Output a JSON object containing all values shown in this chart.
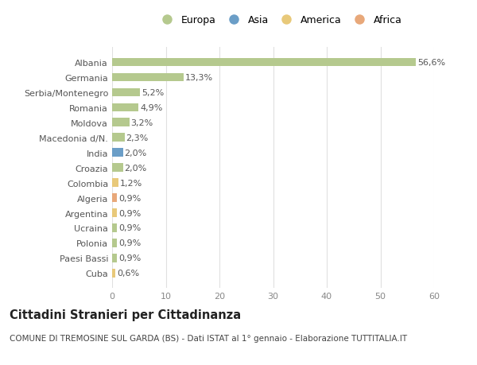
{
  "categories": [
    "Albania",
    "Germania",
    "Serbia/Montenegro",
    "Romania",
    "Moldova",
    "Macedonia d/N.",
    "India",
    "Croazia",
    "Colombia",
    "Algeria",
    "Argentina",
    "Ucraina",
    "Polonia",
    "Paesi Bassi",
    "Cuba"
  ],
  "values": [
    56.6,
    13.3,
    5.2,
    4.9,
    3.2,
    2.3,
    2.0,
    2.0,
    1.2,
    0.9,
    0.9,
    0.9,
    0.9,
    0.9,
    0.6
  ],
  "labels": [
    "56,6%",
    "13,3%",
    "5,2%",
    "4,9%",
    "3,2%",
    "2,3%",
    "2,0%",
    "2,0%",
    "1,2%",
    "0,9%",
    "0,9%",
    "0,9%",
    "0,9%",
    "0,9%",
    "0,6%"
  ],
  "bar_colors": [
    "#b5c98e",
    "#b5c98e",
    "#b5c98e",
    "#b5c98e",
    "#b5c98e",
    "#b5c98e",
    "#6b9ec7",
    "#b5c98e",
    "#e8c97a",
    "#e8a87a",
    "#e8c97a",
    "#b5c98e",
    "#b5c98e",
    "#b5c98e",
    "#e8c97a"
  ],
  "legend_labels": [
    "Europa",
    "Asia",
    "America",
    "Africa"
  ],
  "legend_colors": [
    "#b5c98e",
    "#6b9ec7",
    "#e8c97a",
    "#e8a87a"
  ],
  "title": "Cittadini Stranieri per Cittadinanza",
  "subtitle": "COMUNE DI TREMOSINE SUL GARDA (BS) - Dati ISTAT al 1° gennaio - Elaborazione TUTTITALIA.IT",
  "xlim": [
    0,
    60
  ],
  "xticks": [
    0,
    10,
    20,
    30,
    40,
    50,
    60
  ],
  "bg_color": "#ffffff",
  "grid_color": "#e0e0e0",
  "bar_height": 0.55,
  "label_fontsize": 8,
  "tick_fontsize": 8,
  "title_fontsize": 10.5,
  "subtitle_fontsize": 7.5
}
